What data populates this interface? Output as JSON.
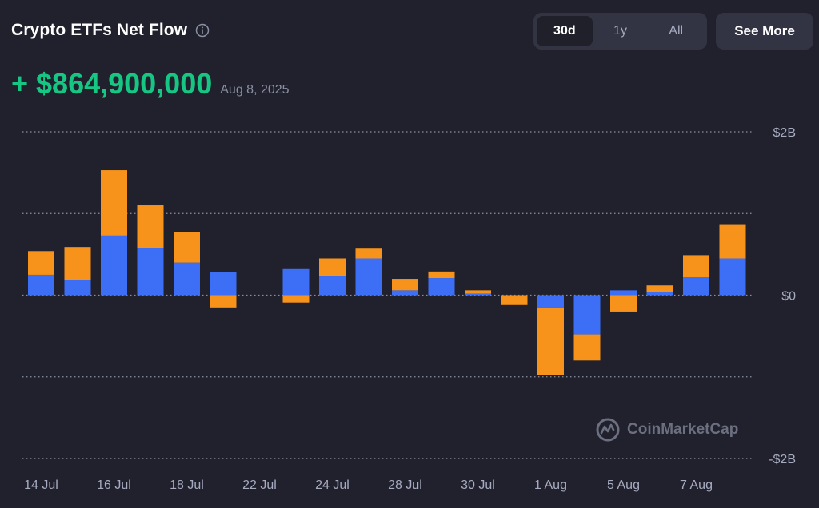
{
  "header": {
    "title": "Crypto ETFs Net Flow",
    "info_icon": "info-icon"
  },
  "tabs": [
    {
      "label": "30d",
      "active": true
    },
    {
      "label": "1y",
      "active": false
    },
    {
      "label": "All",
      "active": false
    }
  ],
  "see_more_label": "See More",
  "headline": {
    "value": "+ $864,900,000",
    "date": "Aug 8, 2025"
  },
  "watermark": "CoinMarketCap",
  "colors": {
    "background": "#21212e",
    "positive": "#16c784",
    "series_blue": "#3d6ef6",
    "series_orange": "#f7931a"
  },
  "chart_data": {
    "type": "bar",
    "stacked": true,
    "ylim": [
      -2000000000,
      2000000000
    ],
    "y_ticks": [
      {
        "value": 2000000000,
        "label": "$2B"
      },
      {
        "value": 0,
        "label": "$0"
      },
      {
        "value": -2000000000,
        "label": "-$2B"
      }
    ],
    "gridlines": [
      2000000000,
      1000000000,
      0,
      -1000000000,
      -2000000000
    ],
    "x_tick_labels": [
      "14 Jul",
      "16 Jul",
      "18 Jul",
      "22 Jul",
      "24 Jul",
      "28 Jul",
      "30 Jul",
      "1 Aug",
      "5 Aug",
      "7 Aug"
    ],
    "bars": [
      {
        "tick": "14 Jul",
        "blue": 250000000,
        "orange": 290000000
      },
      {
        "blue": 190000000,
        "orange": 400000000
      },
      {
        "tick": "16 Jul",
        "blue": 730000000,
        "orange": 800000000
      },
      {
        "blue": 580000000,
        "orange": 520000000
      },
      {
        "tick": "18 Jul",
        "blue": 400000000,
        "orange": 370000000
      },
      {
        "blue": 280000000,
        "orange": -150000000
      },
      {
        "tick": "22 Jul",
        "blue": 0,
        "orange": 0
      },
      {
        "blue": 320000000,
        "orange": -90000000
      },
      {
        "tick": "24 Jul",
        "blue": 230000000,
        "orange": 220000000
      },
      {
        "blue": 450000000,
        "orange": 120000000
      },
      {
        "tick": "28 Jul",
        "blue": 60000000,
        "orange": 140000000
      },
      {
        "blue": 210000000,
        "orange": 80000000
      },
      {
        "tick": "30 Jul",
        "blue": 20000000,
        "orange": 40000000
      },
      {
        "blue": 0,
        "orange": -120000000
      },
      {
        "tick": "1 Aug",
        "blue": -160000000,
        "orange": -820000000
      },
      {
        "blue": -480000000,
        "orange": -320000000
      },
      {
        "tick": "5 Aug",
        "blue": 60000000,
        "orange": -200000000
      },
      {
        "blue": 40000000,
        "orange": 80000000
      },
      {
        "tick": "7 Aug",
        "blue": 220000000,
        "orange": 270000000
      },
      {
        "blue": 450000000,
        "orange": 410000000
      }
    ]
  }
}
